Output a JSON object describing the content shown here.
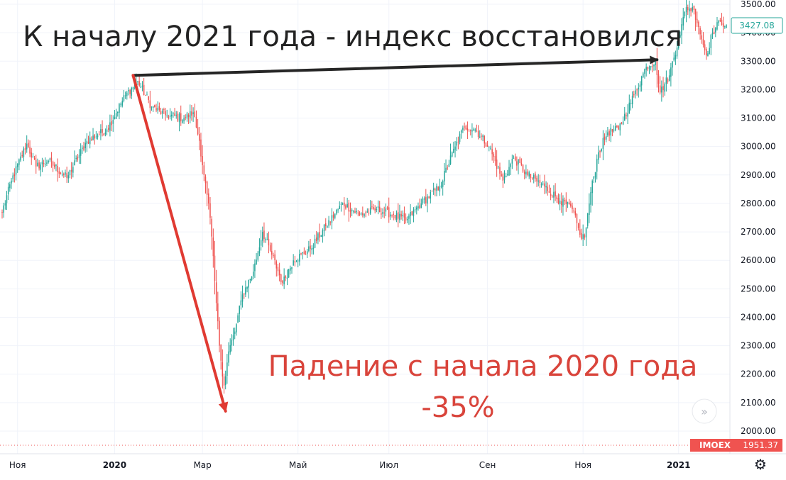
{
  "chart_data": {
    "type": "candlestick",
    "ylim": [
      1960,
      3530
    ],
    "y_ticks": [
      2000,
      2100,
      2200,
      2300,
      2400,
      2500,
      2600,
      2700,
      2800,
      2900,
      3000,
      3100,
      3200,
      3300,
      3400,
      3500
    ],
    "y_tick_labels": [
      "2000.00",
      "2100.00",
      "2200.00",
      "2300.00",
      "2400.00",
      "2500.00",
      "2600.00",
      "2700.00",
      "2800.00",
      "2900.00",
      "3000.00",
      "3100.00",
      "3200.00",
      "3300.00",
      "3400.00",
      "3500.00"
    ],
    "x_ticks": [
      {
        "label": "Ноя",
        "bold": false,
        "t": 10
      },
      {
        "label": "2020",
        "bold": true,
        "t": 73
      },
      {
        "label": "Мар",
        "bold": false,
        "t": 130
      },
      {
        "label": "Май",
        "bold": false,
        "t": 192
      },
      {
        "label": "Июл",
        "bold": false,
        "t": 251
      },
      {
        "label": "Сен",
        "bold": false,
        "t": 315
      },
      {
        "label": "Ноя",
        "bold": false,
        "t": 377
      },
      {
        "label": "2021",
        "bold": true,
        "t": 439
      }
    ],
    "last_price": {
      "value": 3427.08,
      "label": "3427.08"
    },
    "ticker_badge": {
      "symbol": "IMOEX",
      "value": 1951.37,
      "label": "1951.37"
    },
    "key_points": [
      {
        "t": 0,
        "close": 2770
      },
      {
        "t": 6,
        "close": 2880
      },
      {
        "t": 16,
        "close": 3010
      },
      {
        "t": 22,
        "close": 2930
      },
      {
        "t": 30,
        "close": 2950
      },
      {
        "t": 42,
        "close": 2890
      },
      {
        "t": 55,
        "close": 3020
      },
      {
        "t": 68,
        "close": 3060
      },
      {
        "t": 80,
        "close": 3180
      },
      {
        "t": 88,
        "close": 3230
      },
      {
        "t": 97,
        "close": 3140
      },
      {
        "t": 106,
        "close": 3110
      },
      {
        "t": 118,
        "close": 3100
      },
      {
        "t": 124,
        "close": 3120
      },
      {
        "t": 128,
        "close": 3020
      },
      {
        "t": 131,
        "close": 2900
      },
      {
        "t": 133,
        "close": 2830
      },
      {
        "t": 135,
        "close": 2750
      },
      {
        "t": 139,
        "close": 2450
      },
      {
        "t": 141,
        "close": 2300
      },
      {
        "t": 144,
        "close": 2160
      },
      {
        "t": 147,
        "close": 2280
      },
      {
        "t": 151,
        "close": 2350
      },
      {
        "t": 156,
        "close": 2480
      },
      {
        "t": 163,
        "close": 2560
      },
      {
        "t": 169,
        "close": 2700
      },
      {
        "t": 175,
        "close": 2620
      },
      {
        "t": 182,
        "close": 2520
      },
      {
        "t": 189,
        "close": 2600
      },
      {
        "t": 200,
        "close": 2640
      },
      {
        "t": 210,
        "close": 2720
      },
      {
        "t": 221,
        "close": 2800
      },
      {
        "t": 232,
        "close": 2760
      },
      {
        "t": 243,
        "close": 2780
      },
      {
        "t": 254,
        "close": 2760
      },
      {
        "t": 262,
        "close": 2740
      },
      {
        "t": 272,
        "close": 2800
      },
      {
        "t": 284,
        "close": 2860
      },
      {
        "t": 294,
        "close": 3000
      },
      {
        "t": 300,
        "close": 3070
      },
      {
        "t": 307,
        "close": 3060
      },
      {
        "t": 316,
        "close": 3000
      },
      {
        "t": 325,
        "close": 2880
      },
      {
        "t": 332,
        "close": 2960
      },
      {
        "t": 341,
        "close": 2900
      },
      {
        "t": 352,
        "close": 2860
      },
      {
        "t": 362,
        "close": 2810
      },
      {
        "t": 370,
        "close": 2780
      },
      {
        "t": 375,
        "close": 2690
      },
      {
        "t": 378,
        "close": 2680
      },
      {
        "t": 382,
        "close": 2840
      },
      {
        "t": 387,
        "close": 2980
      },
      {
        "t": 393,
        "close": 3050
      },
      {
        "t": 400,
        "close": 3060
      },
      {
        "t": 410,
        "close": 3180
      },
      {
        "t": 418,
        "close": 3280
      },
      {
        "t": 424,
        "close": 3300
      },
      {
        "t": 427,
        "close": 3190
      },
      {
        "t": 433,
        "close": 3250
      },
      {
        "t": 439,
        "close": 3380
      },
      {
        "t": 444,
        "close": 3490
      },
      {
        "t": 449,
        "close": 3480
      },
      {
        "t": 452,
        "close": 3420
      },
      {
        "t": 457,
        "close": 3320
      },
      {
        "t": 461,
        "close": 3400
      },
      {
        "t": 466,
        "close": 3440
      },
      {
        "t": 470,
        "close": 3427.08
      }
    ],
    "arrows": [
      {
        "name": "recovery-arrow",
        "color": "#262626",
        "from": {
          "t": 85,
          "v": 3250
        },
        "to": {
          "t": 425,
          "v": 3305
        }
      },
      {
        "name": "drop-arrow",
        "color": "#e03a32",
        "from": {
          "t": 85,
          "v": 3250
        },
        "to": {
          "t": 145,
          "v": 2070
        }
      }
    ],
    "annotations": [
      {
        "text": "К началу 2021 года - индекс восстановился",
        "color": "#222222"
      },
      {
        "text": "Падение с начала  2020 года",
        "color": "#d9443b"
      },
      {
        "text": "-35%",
        "color": "#d9443b"
      }
    ],
    "colors": {
      "up": "#26a69a",
      "down": "#ef5350",
      "grid": "#f0f3fa",
      "axis_text": "#131722",
      "last_price_border": "#26a69a",
      "badge_bg": "#f05350",
      "dotted_line": "#ef5350"
    },
    "icons": [
      "double-chevron-right-icon",
      "gear-icon"
    ]
  }
}
